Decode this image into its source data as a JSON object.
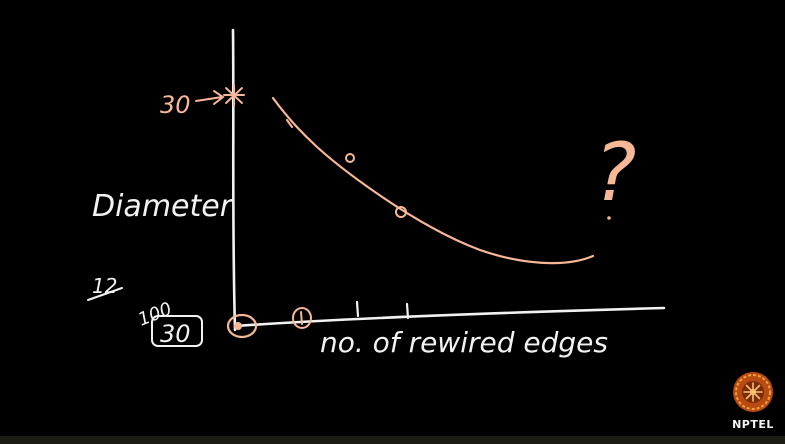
{
  "diagram": {
    "y_axis_label": "Diameter",
    "y_tick_top": "30",
    "annotation_fraction_numerator": "12",
    "annotation_left_top": "100",
    "annotation_left_boxed": "30",
    "x_axis_label": "no. of rewired edges",
    "question_mark": "?",
    "colors": {
      "background": "#000000",
      "white_ink": "#f2f2f2",
      "peach_ink": "#f6b896"
    }
  },
  "logo": {
    "text": "NPTEL",
    "icon": "nptel-logo-icon"
  }
}
